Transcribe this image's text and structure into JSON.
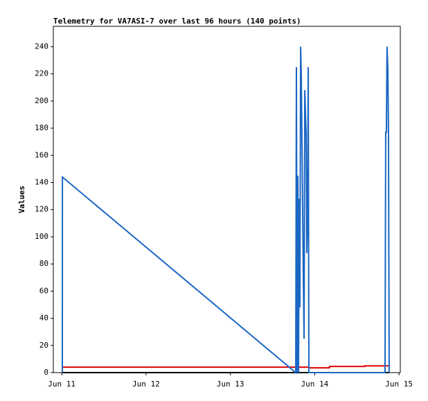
{
  "chart_data": {
    "type": "line",
    "title": "Telemetry for VA7ASI-7 over last 96 hours (140 points)",
    "y_label": "Values",
    "xlim": [
      -0.1,
      4.015
    ],
    "xticks": [
      {
        "value": 0,
        "label": "Jun 11"
      },
      {
        "value": 1,
        "label": "Jun 12"
      },
      {
        "value": 2,
        "label": "Jun 13"
      },
      {
        "value": 3,
        "label": "Jun 14"
      },
      {
        "value": 4,
        "label": "Jun 15"
      }
    ],
    "ylim": [
      0,
      255
    ],
    "yticks": [
      0,
      20,
      40,
      60,
      80,
      100,
      120,
      140,
      160,
      180,
      200,
      220,
      240
    ],
    "grid": false,
    "series": [
      {
        "color": "#000000",
        "x": [
          0.008,
          3.883
        ],
        "values": [
          0,
          0
        ]
      },
      {
        "color": "#e00000",
        "x": [
          0.008,
          2.93,
          2.931,
          3.175,
          3.176,
          3.594,
          3.595,
          3.883
        ],
        "values": [
          4,
          4,
          3.5,
          3.5,
          4.5,
          4.5,
          5,
          5
        ]
      },
      {
        "color": "#1a66c4",
        "x": [
          0.007,
          0.008,
          2.775,
          2.783,
          2.791,
          2.8,
          2.808,
          2.816,
          2.824,
          2.833,
          2.841,
          2.849,
          2.857,
          2.865,
          2.874,
          2.882,
          2.89,
          2.898,
          2.906,
          2.915,
          2.923,
          2.931,
          3.834,
          3.842,
          3.85,
          3.858,
          3.867,
          3.875,
          3.883
        ],
        "values": [
          0,
          144,
          0,
          225,
          0,
          145,
          0,
          128,
          48,
          240,
          217,
          168,
          120,
          70,
          25,
          208,
          192,
          176,
          88,
          113,
          225,
          0,
          0,
          177,
          177,
          240,
          225,
          177,
          0
        ]
      }
    ]
  }
}
